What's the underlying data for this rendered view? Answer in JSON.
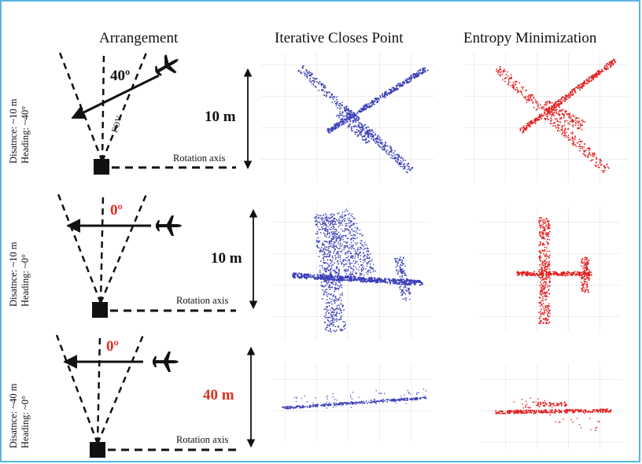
{
  "headers": {
    "arrangement": "Arrangement",
    "icp": "Iterative Closes Point",
    "em": "Entropy Minimization"
  },
  "rows": [
    {
      "side_label_line1": "Disatnce: ~10 m",
      "side_label_line2": "Heading: ~40°",
      "angle": "40º",
      "angle_color": "#111111",
      "fov": "FOV",
      "rotation_axis": "Rotation axis",
      "scale": "10 m",
      "scale_color": "#111111"
    },
    {
      "side_label_line1": "Disatnce: ~10 m",
      "side_label_line2": "Heading: ~0°",
      "angle": "0º",
      "angle_color": "#e0301e",
      "rotation_axis": "Rotation axis",
      "scale": "10 m",
      "scale_color": "#111111"
    },
    {
      "side_label_line1": "Disatnce: ~40 m",
      "side_label_line2": "Heading: ~0°",
      "angle": "0º",
      "angle_color": "#e0301e",
      "rotation_axis": "Rotation axis",
      "scale": "40 m",
      "scale_color": "#e0301e"
    }
  ],
  "colors": {
    "icp_points": "#3b3fb8",
    "em_points": "#e21f1f",
    "border": "#5bb3e0",
    "grid": "#d8d8d8"
  },
  "icons": {
    "airplane": "airplane-icon",
    "sensor": "sensor-square-icon"
  }
}
